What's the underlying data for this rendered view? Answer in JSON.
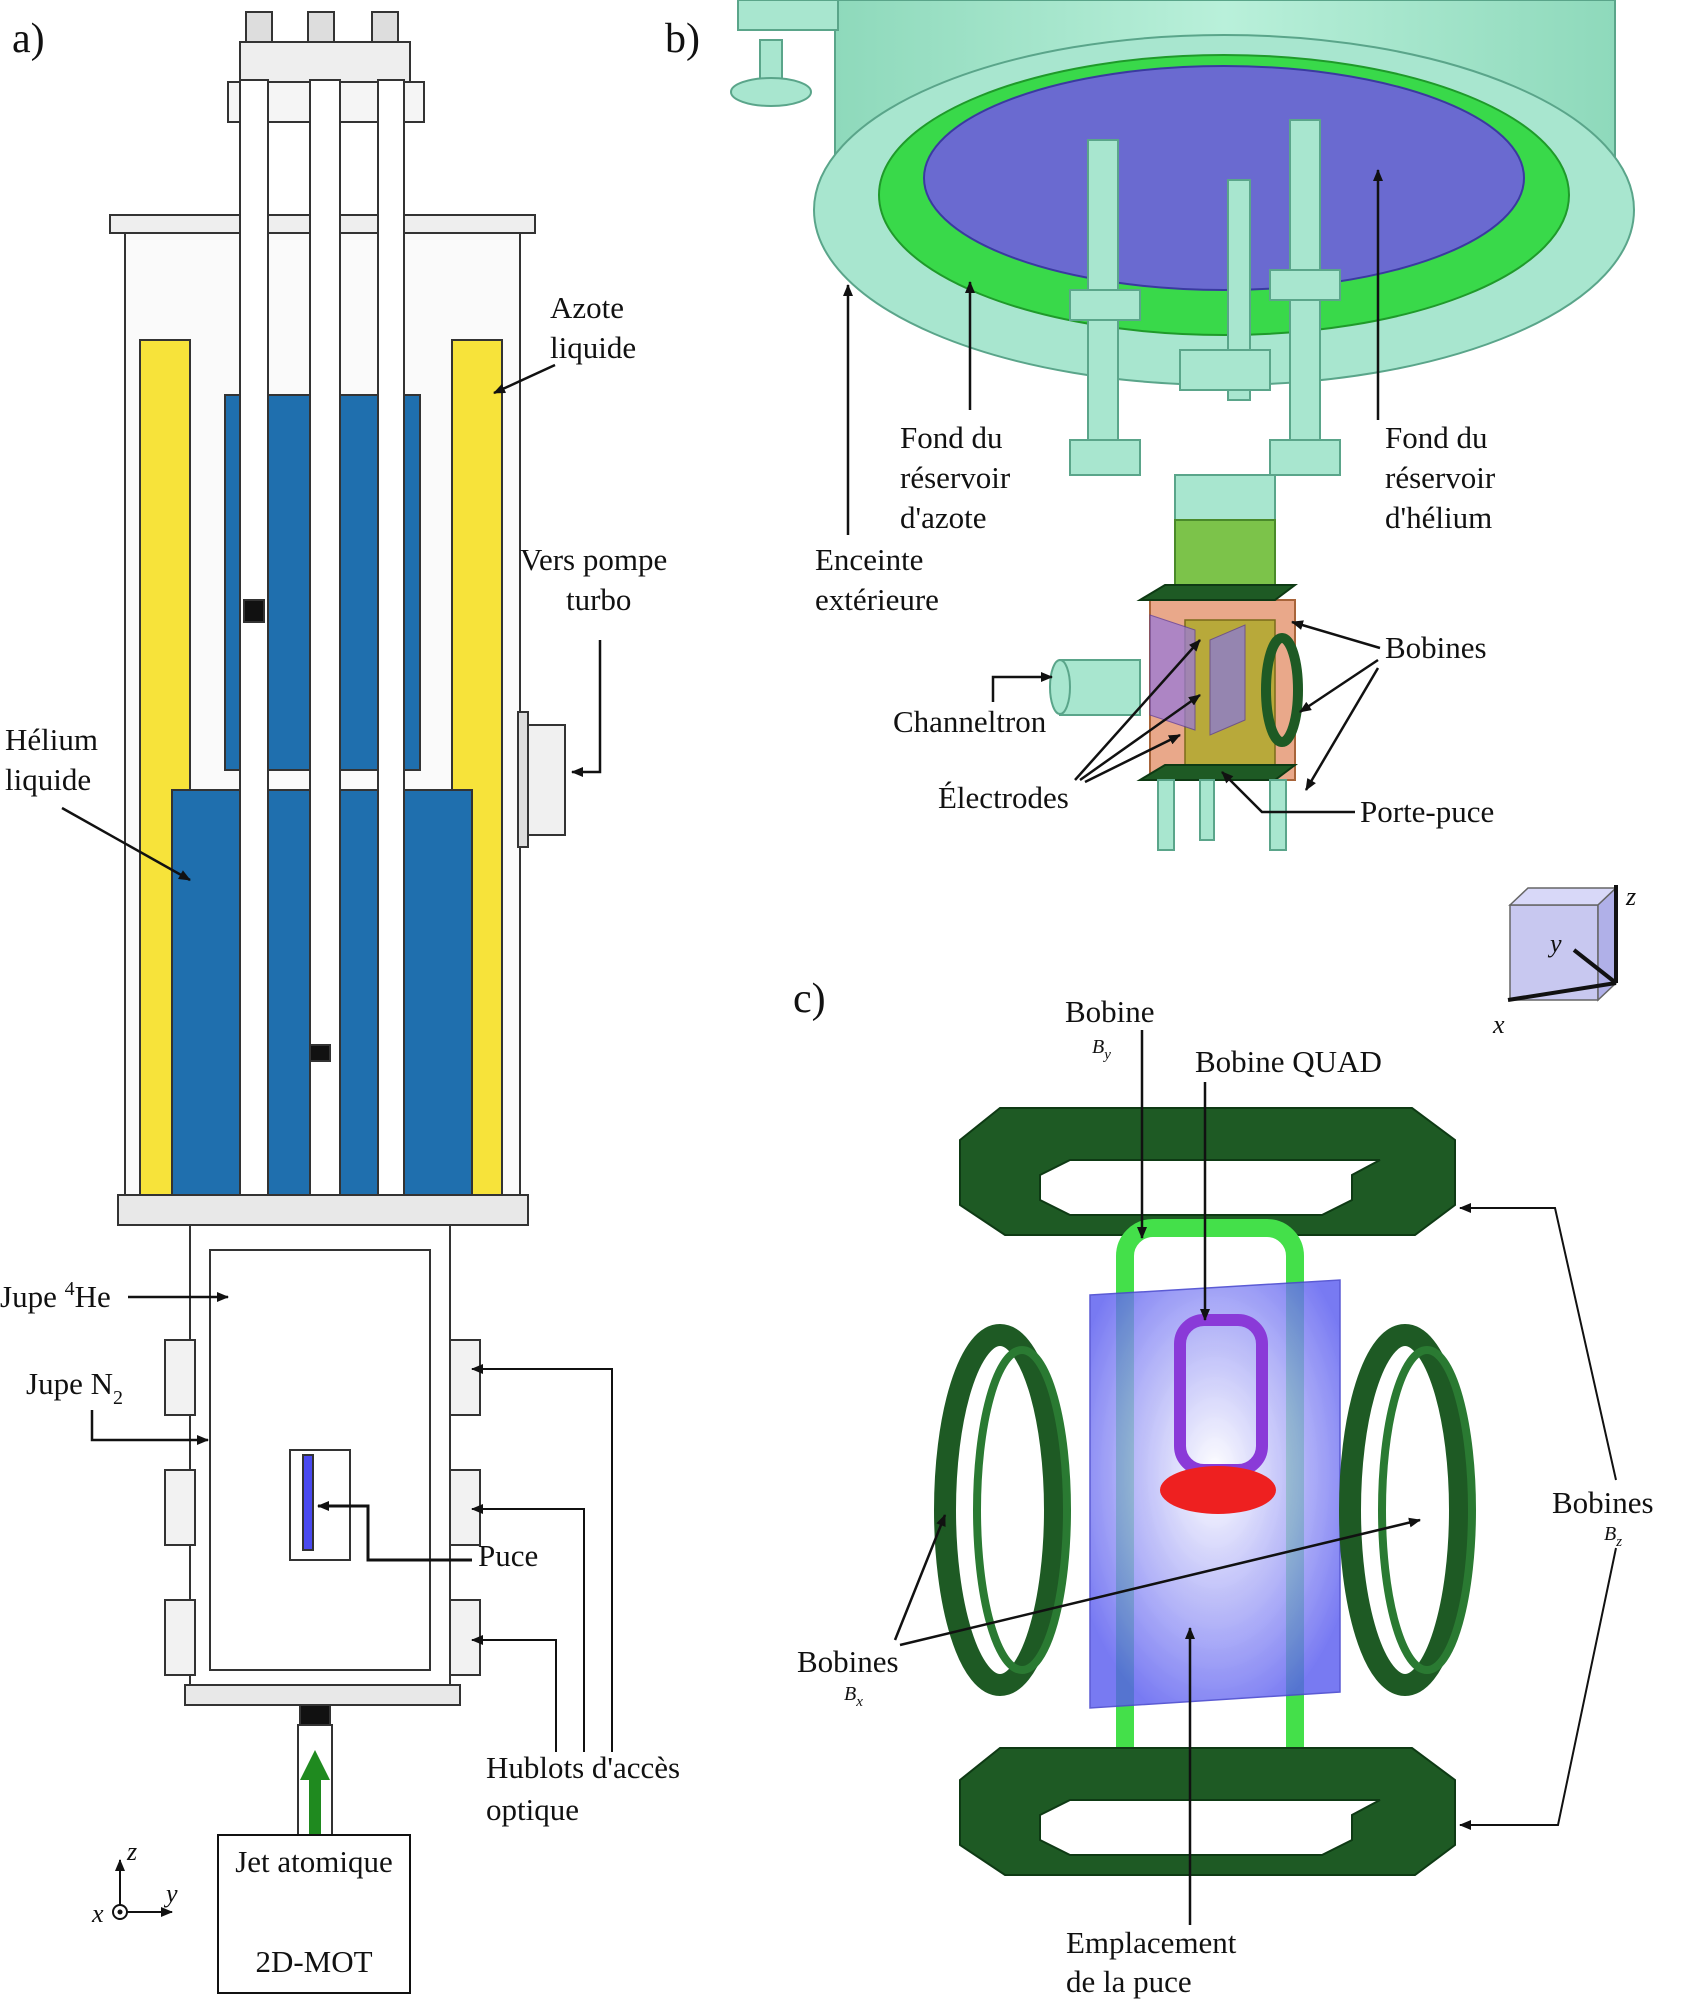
{
  "panel_a": {
    "tag": "a)",
    "labels": {
      "azote_l1": "Azote",
      "azote_l2": "liquide",
      "vers_l1": "Vers pompe",
      "vers_l2": "turbo",
      "helium_l1": "Hélium",
      "helium_l2": "liquide",
      "jupe_he_pre": "Jupe ",
      "jupe_he_sup": "4",
      "jupe_he_post": "He",
      "jupe_n2_pre": "Jupe N",
      "jupe_n2_sub": "2",
      "puce": "Puce",
      "hublots_l1": "Hublots d'accès",
      "hublots_l2": "optique",
      "jet": "Jet atomique",
      "mot": "2D-MOT"
    },
    "axes": {
      "z": "z",
      "y": "y",
      "x": "x"
    }
  },
  "panel_b": {
    "tag": "b)",
    "labels": {
      "fond_az_l1": "Fond du",
      "fond_az_l2": "réservoir",
      "fond_az_l3": "d'azote",
      "fond_he_l1": "Fond du",
      "fond_he_l2": "réservoir",
      "fond_he_l3": "d'hélium",
      "enceinte_l1": "Enceinte",
      "enceinte_l2": "extérieure",
      "bobines": "Bobines",
      "channeltron": "Channeltron",
      "electrodes": "Électrodes",
      "porte_puce": "Porte-puce"
    },
    "axes": {
      "z": "z",
      "y": "y",
      "x": "x"
    }
  },
  "panel_c": {
    "tag": "c)",
    "labels": {
      "bobine_by_l1": "Bobine",
      "bobine_by_sub": "B",
      "bobine_by_subsub": "y",
      "bobine_quad": "Bobine QUAD",
      "bobines_bz_l1": "Bobines",
      "bobines_bz_sub": "B",
      "bobines_bz_subsub": "z",
      "bobines_bx_l1": "Bobines",
      "bobines_bx_sub": "B",
      "bobines_bx_subsub": "x",
      "emplacement_l1": "Emplacement",
      "emplacement_l2": "de la puce"
    }
  },
  "colors": {
    "helium_blue": "#1f6fae",
    "nitrogen_yellow": "#f7e33a",
    "cryostat_mint": "#a8e6cf",
    "reservoir_green": "#39d94a",
    "plate_purple": "#6a6ad0",
    "coil_dark_green": "#1e5a24",
    "coil_bright_green": "#44e04a",
    "chip_plane_blue": "#6a6cf0",
    "quad_purple": "#8a3ad8",
    "quad_red": "#ee2020",
    "arrow_green": "#1f8a1f"
  }
}
